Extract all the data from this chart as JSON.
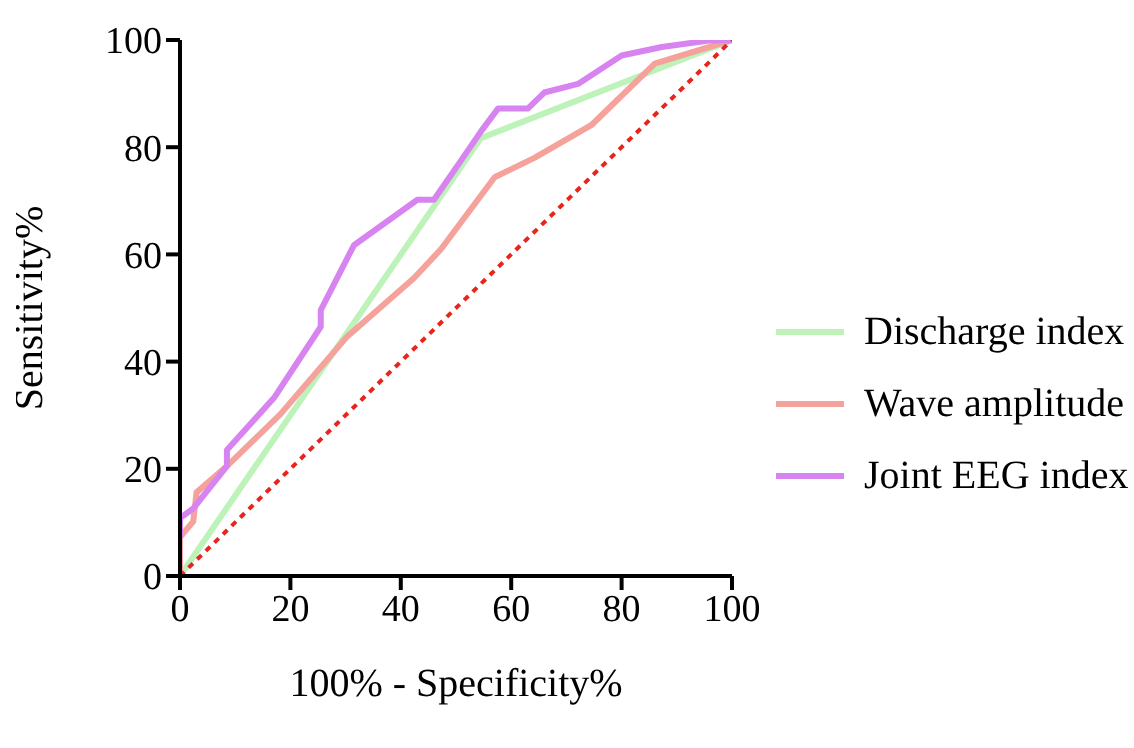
{
  "chart_data": {
    "type": "line",
    "xlabel": "100% - Specificity%",
    "ylabel": "Sensitivity%",
    "xlim": [
      0,
      100
    ],
    "ylim": [
      0,
      100
    ],
    "xticks": [
      0,
      20,
      40,
      60,
      80,
      100
    ],
    "yticks": [
      0,
      20,
      40,
      60,
      80,
      100
    ],
    "legend": "right",
    "marker": "none",
    "series": [
      {
        "name": "Discharge index",
        "color": "#bdf2b8",
        "x": [
          0,
          54.5,
          100
        ],
        "values": [
          0,
          81.7,
          100
        ]
      },
      {
        "name": "Wave amplitude",
        "color": "#f4a29b",
        "x": [
          0,
          0,
          2.4,
          3,
          8.5,
          18.2,
          30.3,
          42.4,
          47.3,
          57,
          64.2,
          74.5,
          86,
          100
        ],
        "values": [
          0,
          7.2,
          10.2,
          15.6,
          20.5,
          30.2,
          44.7,
          55.6,
          61,
          74.4,
          78,
          84.1,
          95.6,
          100
        ]
      },
      {
        "name": "Joint EEG index",
        "color": "#d884f0",
        "x": [
          0,
          0,
          2.4,
          8.5,
          8.5,
          17,
          25.5,
          25.5,
          31.5,
          43,
          46,
          50.9,
          54.5,
          57.6,
          63,
          66,
          72.1,
          80,
          87.3,
          95.8,
          100
        ],
        "values": [
          7,
          10.8,
          12.6,
          20.5,
          23.5,
          33.2,
          46.5,
          49.6,
          61.7,
          70.2,
          70.2,
          77.5,
          82.9,
          87.2,
          87.2,
          90.2,
          91.8,
          97.1,
          98.7,
          99.9,
          100
        ]
      },
      {
        "color": "#e8251c",
        "line_style": "dotted",
        "x": [
          0,
          100
        ],
        "values": [
          0,
          100
        ]
      }
    ]
  }
}
